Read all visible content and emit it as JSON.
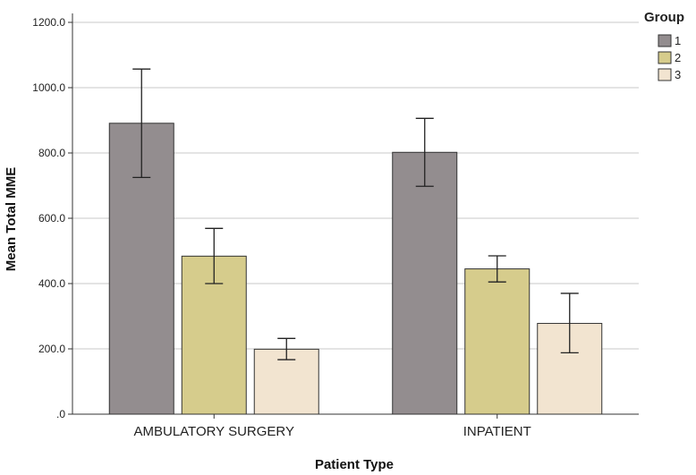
{
  "chart_data": {
    "type": "bar",
    "title": "",
    "xlabel": "Patient Type",
    "ylabel": "Mean Total MME",
    "ylim": [
      0,
      1200
    ],
    "yticks": [
      0,
      200,
      400,
      600,
      800,
      1000,
      1200
    ],
    "ytick_labels": [
      ".0",
      "200.0",
      "400.0",
      "600.0",
      "800.0",
      "1000.0",
      "1200.0"
    ],
    "categories": [
      "AMBULATORY SURGERY",
      "INPATIENT"
    ],
    "legend_title": "Group",
    "legend_position": "top-right",
    "grid": true,
    "series": [
      {
        "name": "1",
        "color": "#938d8f",
        "values": [
          891,
          802
        ],
        "err_low": [
          725,
          698
        ],
        "err_high": [
          1057,
          906
        ]
      },
      {
        "name": "2",
        "color": "#d6cc8c",
        "values": [
          484,
          445
        ],
        "err_low": [
          400,
          405
        ],
        "err_high": [
          569,
          485
        ]
      },
      {
        "name": "3",
        "color": "#f2e4d0",
        "values": [
          199,
          278
        ],
        "err_low": [
          167,
          188
        ],
        "err_high": [
          232,
          370
        ]
      }
    ]
  }
}
